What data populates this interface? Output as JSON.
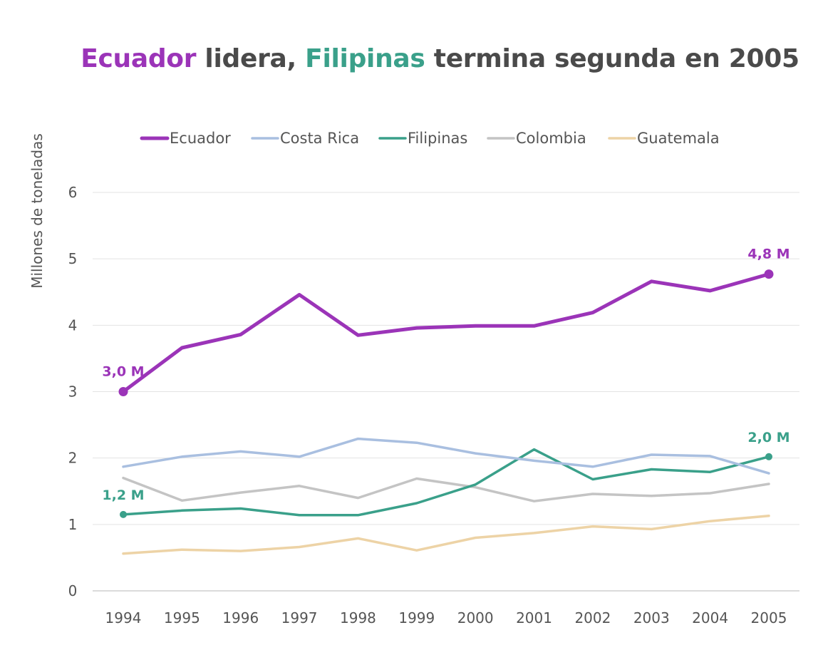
{
  "title": {
    "part1": "Ecuador",
    "part2": " lidera, ",
    "part3": "Filipinas",
    "part4": " termina segunda en 2005"
  },
  "chart_data": {
    "type": "line",
    "title": "Ecuador lidera, Filipinas termina segunda en 2005",
    "xlabel": "",
    "ylabel": "Millones de toneladas",
    "x": [
      "1994",
      "1995",
      "1996",
      "1997",
      "1998",
      "1999",
      "2000",
      "2001",
      "2002",
      "2003",
      "2004",
      "2005"
    ],
    "ylim": [
      0,
      6
    ],
    "yticks": [
      "0",
      "1",
      "2",
      "3",
      "4",
      "5",
      "6"
    ],
    "grid": true,
    "legend_position": "top",
    "series": [
      {
        "name": "Ecuador",
        "color": "#9b34b8",
        "width": 5,
        "values": [
          3.0,
          3.66,
          3.86,
          4.46,
          3.85,
          3.96,
          3.99,
          3.99,
          4.19,
          4.66,
          4.52,
          4.77
        ]
      },
      {
        "name": "Costa Rica",
        "color": "#a9bfe0",
        "width": 3.5,
        "values": [
          1.87,
          2.02,
          2.1,
          2.02,
          2.29,
          2.23,
          2.07,
          1.96,
          1.87,
          2.05,
          2.03,
          1.77
        ]
      },
      {
        "name": "Filipinas",
        "color": "#3aa08a",
        "width": 3.5,
        "values": [
          1.15,
          1.21,
          1.24,
          1.14,
          1.14,
          1.32,
          1.6,
          2.13,
          1.68,
          1.83,
          1.79,
          2.02
        ]
      },
      {
        "name": "Colombia",
        "color": "#c4c4c4",
        "width": 3.5,
        "values": [
          1.7,
          1.36,
          1.48,
          1.58,
          1.4,
          1.69,
          1.56,
          1.35,
          1.46,
          1.43,
          1.47,
          1.61
        ]
      },
      {
        "name": "Guatemala",
        "color": "#edd3a6",
        "width": 3.5,
        "values": [
          0.56,
          0.62,
          0.6,
          0.66,
          0.79,
          0.61,
          0.8,
          0.87,
          0.97,
          0.93,
          1.05,
          1.13
        ]
      }
    ],
    "annotations": [
      {
        "series": "Ecuador",
        "x": "1994",
        "value": 3.0,
        "text": "3,0 M",
        "color": "#9b34b8"
      },
      {
        "series": "Ecuador",
        "x": "2005",
        "value": 4.77,
        "text": "4,8 M",
        "color": "#9b34b8"
      },
      {
        "series": "Filipinas",
        "x": "1994",
        "value": 1.15,
        "text": "1,2 M",
        "color": "#3aa08a"
      },
      {
        "series": "Filipinas",
        "x": "2005",
        "value": 2.02,
        "text": "2,0 M",
        "color": "#3aa08a"
      }
    ]
  }
}
